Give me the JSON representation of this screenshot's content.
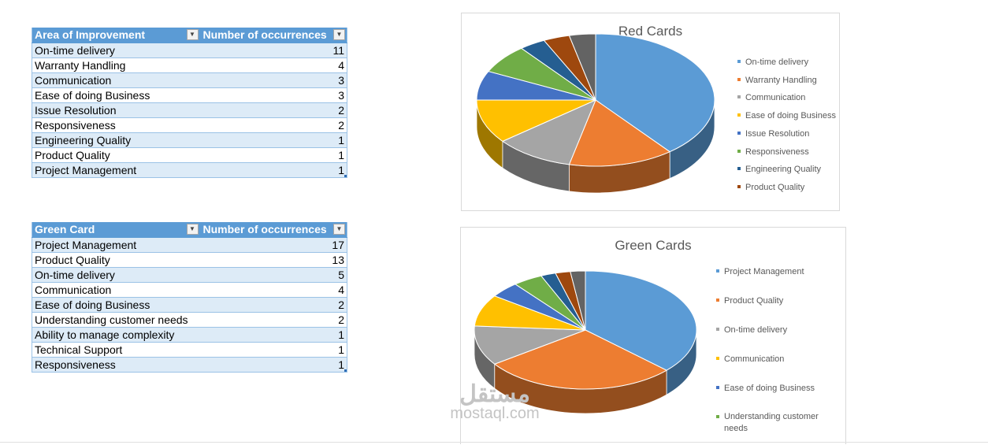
{
  "red_table": {
    "header_col1": "Area of Improvement",
    "header_col2": "Number of occurrences",
    "rows": [
      {
        "label": "On-time delivery",
        "value": "11"
      },
      {
        "label": "Warranty Handling",
        "value": "4"
      },
      {
        "label": "Communication",
        "value": "3"
      },
      {
        "label": "Ease of doing Business",
        "value": "3"
      },
      {
        "label": "Issue Resolution",
        "value": "2"
      },
      {
        "label": "Responsiveness",
        "value": "2"
      },
      {
        "label": "Engineering Quality",
        "value": "1"
      },
      {
        "label": "Product Quality",
        "value": "1"
      },
      {
        "label": "Project Management",
        "value": "1"
      }
    ]
  },
  "green_table": {
    "header_col1": "Green Card",
    "header_col2": "Number of occurrences",
    "rows": [
      {
        "label": "Project Management",
        "value": "17"
      },
      {
        "label": "Product Quality",
        "value": "13"
      },
      {
        "label": "On-time delivery",
        "value": "5"
      },
      {
        "label": "Communication",
        "value": "4"
      },
      {
        "label": "Ease of doing Business",
        "value": "2"
      },
      {
        "label": "Understanding customer needs",
        "value": "2"
      },
      {
        "label": "Ability to manage complexity",
        "value": "1"
      },
      {
        "label": "Technical Support",
        "value": "1"
      },
      {
        "label": "Responsiveness",
        "value": "1"
      }
    ]
  },
  "icons": {
    "filter_dropdown": "filter-dropdown-icon",
    "sort_filter": "sort-descending-filter-icon"
  },
  "chart_data": [
    {
      "type": "pie",
      "title": "Red Cards",
      "categories": [
        "On-time delivery",
        "Warranty Handling",
        "Communication",
        "Ease of doing Business",
        "Issue Resolution",
        "Responsiveness",
        "Engineering Quality",
        "Product Quality",
        "Project Management"
      ],
      "values": [
        11,
        4,
        3,
        3,
        2,
        2,
        1,
        1,
        1
      ],
      "legend_entries": [
        "On-time delivery",
        "Warranty Handling",
        "Communication",
        "Ease of doing Business",
        "Issue Resolution",
        "Responsiveness",
        "Engineering Quality",
        "Product Quality"
      ],
      "colors": [
        "#5b9bd5",
        "#ed7d31",
        "#a5a5a5",
        "#ffc000",
        "#4472c4",
        "#70ad47",
        "#255e91",
        "#9e480e",
        "#636363"
      ],
      "legend_position": "right",
      "style": "3d"
    },
    {
      "type": "pie",
      "title": "Green Cards",
      "categories": [
        "Project Management",
        "Product Quality",
        "On-time delivery",
        "Communication",
        "Ease of doing Business",
        "Understanding customer needs",
        "Ability to manage complexity",
        "Technical Support",
        "Responsiveness"
      ],
      "values": [
        17,
        13,
        5,
        4,
        2,
        2,
        1,
        1,
        1
      ],
      "legend_entries": [
        "Project Management",
        "Product Quality",
        "On-time delivery",
        "Communication",
        "Ease of doing Business",
        "Understanding customer needs"
      ],
      "colors": [
        "#5b9bd5",
        "#ed7d31",
        "#a5a5a5",
        "#ffc000",
        "#4472c4",
        "#70ad47",
        "#255e91",
        "#9e480e",
        "#636363"
      ],
      "legend_position": "right",
      "style": "3d"
    }
  ],
  "watermark": {
    "arabic": "مستقل",
    "latin": "mostaql.com"
  }
}
